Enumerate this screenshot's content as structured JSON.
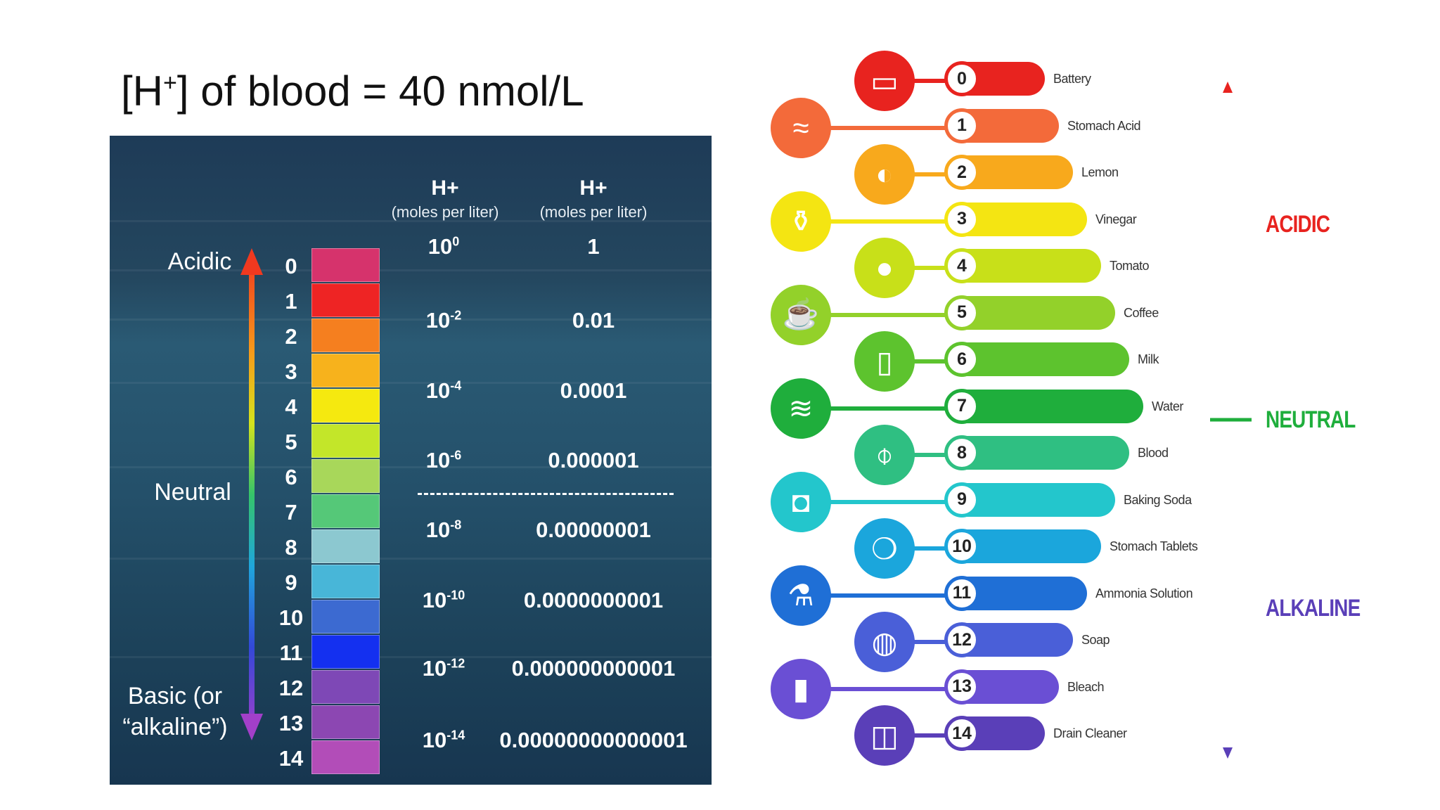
{
  "slide": {
    "title_prefix": "[H",
    "title_superscript": "+",
    "title_suffix": "] of blood = 40 nmol/L"
  },
  "ph_table": {
    "col1_header": "H+",
    "col1_subheader": "(moles per liter)",
    "col2_header": "H+",
    "col2_subheader": "(moles per liter)",
    "acidic_label": "Acidic",
    "neutral_label": "Neutral",
    "basic_label_line1": "Basic (or",
    "basic_label_line2": "“alkaline”)",
    "ph_numbers": [
      "0",
      "1",
      "2",
      "3",
      "4",
      "5",
      "6",
      "7",
      "8",
      "9",
      "10",
      "11",
      "12",
      "13",
      "14"
    ],
    "cell_colors": [
      "#d6336c",
      "#ee2424",
      "#f57f1f",
      "#f7b21c",
      "#f5e90f",
      "#c3e629",
      "#a8d75a",
      "#55c878",
      "#8cc8d0",
      "#48b6d8",
      "#3c6ad1",
      "#1430f0",
      "#7e48b6",
      "#8c47b2",
      "#b24db8"
    ],
    "rows": [
      {
        "base": "10",
        "exp": "0",
        "value": "1"
      },
      {
        "base": "10",
        "exp": "-2",
        "value": "0.01"
      },
      {
        "base": "10",
        "exp": "-4",
        "value": "0.0001"
      },
      {
        "base": "10",
        "exp": "-6",
        "value": "0.000001"
      },
      {
        "base": "10",
        "exp": "-8",
        "value": "0.00000001"
      },
      {
        "base": "10",
        "exp": "-10",
        "value": "0.0000000001"
      },
      {
        "base": "10",
        "exp": "-12",
        "value": "0.000000000001"
      },
      {
        "base": "10",
        "exp": "-14",
        "value": "0.00000000000001"
      }
    ]
  },
  "ph_scale": {
    "items": [
      {
        "ph": "0",
        "label": "Battery",
        "color": "#e8231f",
        "icon": "battery-icon"
      },
      {
        "ph": "1",
        "label": "Stomach Acid",
        "color": "#f36a3a",
        "icon": "stomach-icon"
      },
      {
        "ph": "2",
        "label": "Lemon",
        "color": "#f8a91c",
        "icon": "lemon-icon"
      },
      {
        "ph": "3",
        "label": "Vinegar",
        "color": "#f4e512",
        "icon": "vinegar-bottle-icon"
      },
      {
        "ph": "4",
        "label": "Tomato",
        "color": "#c8e019",
        "icon": "tomato-icon"
      },
      {
        "ph": "5",
        "label": "Coffee",
        "color": "#93d12a",
        "icon": "coffee-cup-icon"
      },
      {
        "ph": "6",
        "label": "Milk",
        "color": "#5dc32e",
        "icon": "milk-bottle-icon"
      },
      {
        "ph": "7",
        "label": "Water",
        "color": "#1fae3c",
        "icon": "water-splash-icon"
      },
      {
        "ph": "8",
        "label": "Blood",
        "color": "#2fbf82",
        "icon": "blood-tube-icon"
      },
      {
        "ph": "9",
        "label": "Baking Soda",
        "color": "#23c6cc",
        "icon": "baking-soda-icon"
      },
      {
        "ph": "10",
        "label": "Stomach Tablets",
        "color": "#1ba6dc",
        "icon": "stomach-tablet-icon"
      },
      {
        "ph": "11",
        "label": "Ammonia Solution",
        "color": "#1f6fd6",
        "icon": "flask-icon"
      },
      {
        "ph": "12",
        "label": "Soap",
        "color": "#4a5fd8",
        "icon": "soap-icon"
      },
      {
        "ph": "13",
        "label": "Bleach",
        "color": "#6a4fd4",
        "icon": "bleach-jug-icon"
      },
      {
        "ph": "14",
        "label": "Drain Cleaner",
        "color": "#5a3fb8",
        "icon": "drain-sink-icon"
      }
    ],
    "acidic_label": "ACIDIC",
    "neutral_label": "NEUTRAL",
    "alkaline_label": "ALKALINE",
    "acidic_color": "#e8231f",
    "neutral_color": "#1fae3c",
    "alkaline_color": "#5a3fb8"
  }
}
